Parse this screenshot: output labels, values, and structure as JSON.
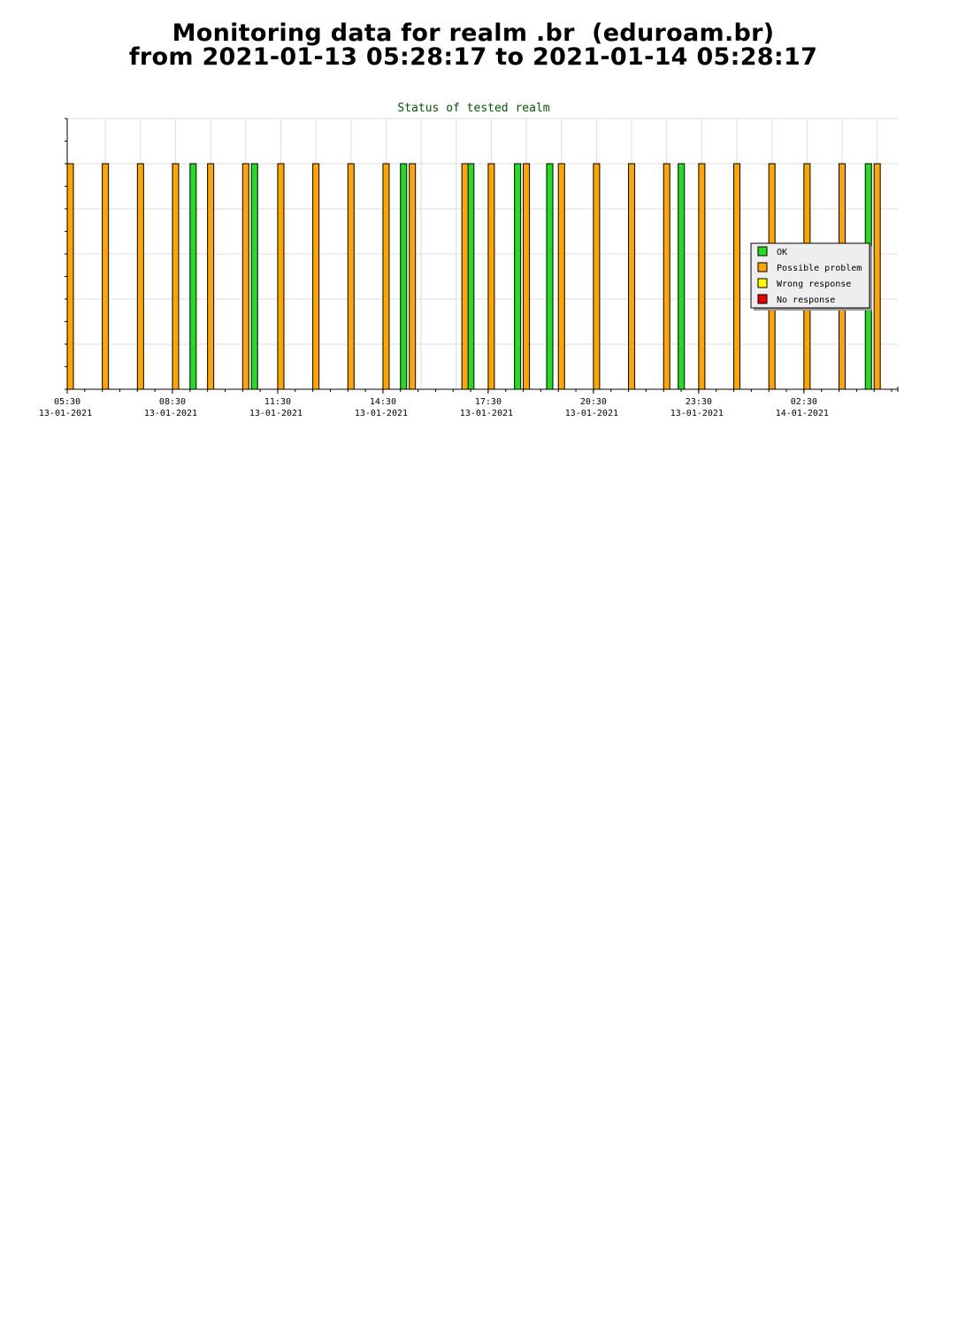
{
  "page": {
    "title_line1": "Monitoring data for realm .br  (eduroam.br)",
    "title_line2": "from 2021-01-13 05:28:17 to 2021-01-14 05:28:17"
  },
  "chart_data": {
    "type": "bar",
    "title": "Status of tested realm",
    "xlabel": "",
    "ylabel": "",
    "ylim": [
      0,
      6
    ],
    "xlim": [
      "2021-01-13 05:30",
      "2021-01-14 05:00"
    ],
    "grid": true,
    "legend_position": "right",
    "x_ticks": [
      {
        "time": "05:30",
        "date": "13-01-2021"
      },
      {
        "time": "08:30",
        "date": "13-01-2021"
      },
      {
        "time": "11:30",
        "date": "13-01-2021"
      },
      {
        "time": "14:30",
        "date": "13-01-2021"
      },
      {
        "time": "17:30",
        "date": "13-01-2021"
      },
      {
        "time": "20:30",
        "date": "13-01-2021"
      },
      {
        "time": "23:30",
        "date": "13-01-2021"
      },
      {
        "time": "02:30",
        "date": "14-01-2021"
      }
    ],
    "series": [
      {
        "name": "OK",
        "color": "#22dd22",
        "value": 5,
        "times": [
          "2021-01-13 09:00",
          "2021-01-13 10:45",
          "2021-01-13 15:00",
          "2021-01-13 16:55",
          "2021-01-13 18:15",
          "2021-01-13 19:10",
          "2021-01-13 22:55",
          "2021-01-14 04:15"
        ]
      },
      {
        "name": "Possible problem",
        "color": "#ffa500",
        "value": 5,
        "times": [
          "2021-01-13 05:30",
          "2021-01-13 06:30",
          "2021-01-13 07:30",
          "2021-01-13 08:30",
          "2021-01-13 09:30",
          "2021-01-13 10:30",
          "2021-01-13 11:30",
          "2021-01-13 12:30",
          "2021-01-13 13:30",
          "2021-01-13 14:30",
          "2021-01-13 15:15",
          "2021-01-13 16:45",
          "2021-01-13 17:30",
          "2021-01-13 18:30",
          "2021-01-13 19:30",
          "2021-01-13 20:30",
          "2021-01-13 21:30",
          "2021-01-13 22:30",
          "2021-01-13 23:30",
          "2021-01-14 00:30",
          "2021-01-14 01:30",
          "2021-01-14 02:30",
          "2021-01-14 03:30",
          "2021-01-14 04:30"
        ]
      },
      {
        "name": "Wrong response",
        "color": "#ffff00",
        "value": 5,
        "times": []
      },
      {
        "name": "No response",
        "color": "#ee0000",
        "value": 5,
        "times": []
      }
    ]
  }
}
